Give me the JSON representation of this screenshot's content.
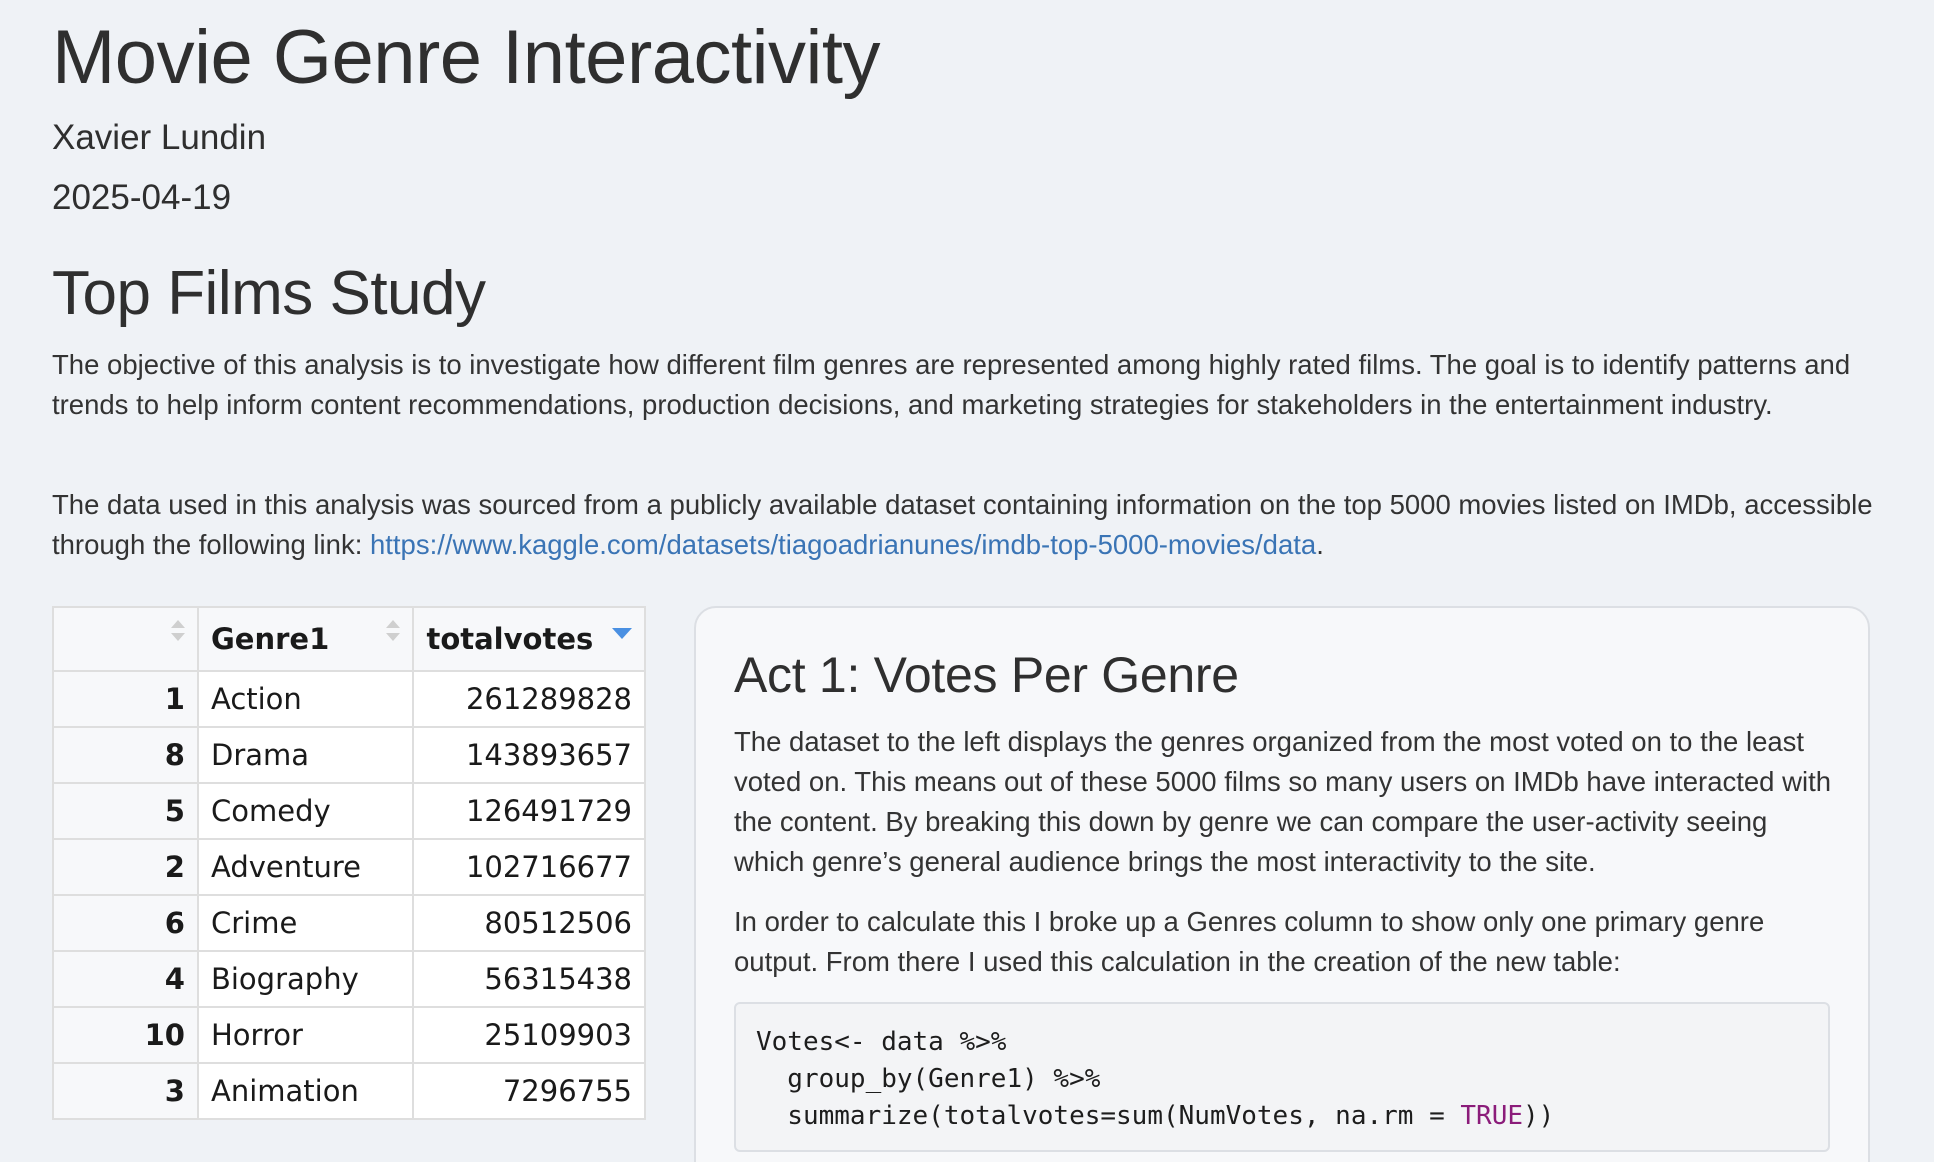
{
  "header": {
    "title": "Movie Genre Interactivity",
    "author": "Xavier Lundin",
    "date": "2025-04-19"
  },
  "intro": {
    "section_title": "Top Films Study",
    "paragraph1": "The objective of this analysis is to investigate how different film genres are represented among highly rated films. The goal is to identify patterns and trends to help inform content recommendations, production decisions, and marketing strategies for stakeholders in the entertainment industry.",
    "paragraph2_prefix": "The data used in this analysis was sourced from a publicly available dataset containing information on the top 5000 movies listed on IMDb, accessible through the following link: ",
    "link_text": "https://www.kaggle.com/datasets/tiagoadrianunes/imdb-top-5000-movies/data",
    "paragraph2_suffix": "."
  },
  "table": {
    "columns": [
      "",
      "Genre1",
      "totalvotes"
    ],
    "sorted_column": "totalvotes",
    "sort_direction": "descending",
    "rows": [
      {
        "index": "1",
        "genre": "Action",
        "votes": "261289828"
      },
      {
        "index": "8",
        "genre": "Drama",
        "votes": "143893657"
      },
      {
        "index": "5",
        "genre": "Comedy",
        "votes": "126491729"
      },
      {
        "index": "2",
        "genre": "Adventure",
        "votes": "102716677"
      },
      {
        "index": "6",
        "genre": "Crime",
        "votes": "80512506"
      },
      {
        "index": "4",
        "genre": "Biography",
        "votes": "56315438"
      },
      {
        "index": "10",
        "genre": "Horror",
        "votes": "25109903"
      },
      {
        "index": "3",
        "genre": "Animation",
        "votes": "7296755"
      }
    ]
  },
  "card": {
    "title": "Act 1: Votes Per Genre",
    "paragraph1": "The dataset to the left displays the genres organized from the most voted on to the least voted on. This means out of these 5000 films so many users on IMDb have interacted with the content. By breaking this down by genre we can compare the user-activity seeing which genre’s general audience brings the most interactivity to the site.",
    "paragraph2": "In order to calculate this I broke up a Genres column to show only one primary genre output. From there I used this calculation in the creation of the new table:",
    "code": {
      "line1": "Votes<- data %>%",
      "line2": "  group_by(Genre1) %>%",
      "line3_prefix": "  summarize(totalvotes=sum(NumVotes, na.rm = ",
      "line3_keyword": "TRUE",
      "line3_suffix": "))"
    }
  },
  "colors": {
    "background": "#eff2f6",
    "link": "#3a74b5",
    "sort_active": "#4a90e2",
    "code_keyword": "#8b1c7a"
  }
}
